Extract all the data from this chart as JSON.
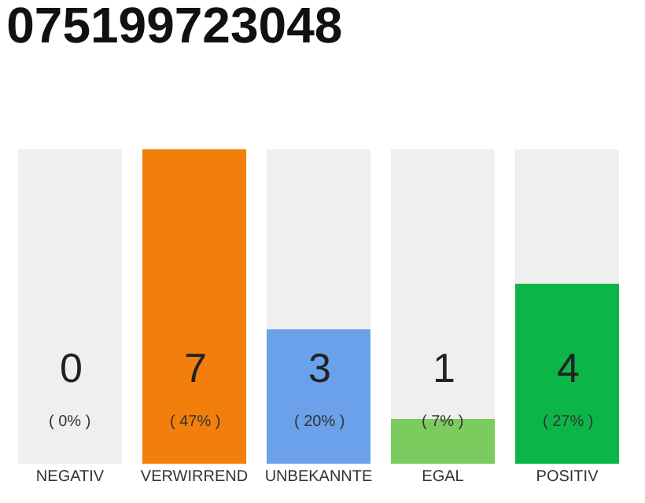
{
  "chart_data": {
    "type": "bar",
    "title": "075199723048",
    "stacked": true,
    "categories": [
      "NEGATIV",
      "VERWIRREND",
      "UNBEKANNTE",
      "EGAL",
      "POSITIV"
    ],
    "series": [
      {
        "colors": [
          "#333333",
          "#f27f0c",
          "#6aa1ea",
          "#7ccb5f",
          "#0cb548"
        ],
        "values": [
          0,
          7,
          3,
          1,
          4
        ],
        "value_labels": [
          null,
          "7",
          "3",
          "1",
          "4"
        ]
      },
      {
        "color": "#efefef",
        "values": [
          7,
          0,
          4,
          6,
          3
        ]
      }
    ],
    "annotations": [
      "( 0% )",
      "( 47% )",
      "( 20% )",
      "( 7% )",
      "( 27% )",
      {
        "text": "0",
        "x": "NEGATIV",
        "y": 0
      }
    ],
    "legend": false
  }
}
